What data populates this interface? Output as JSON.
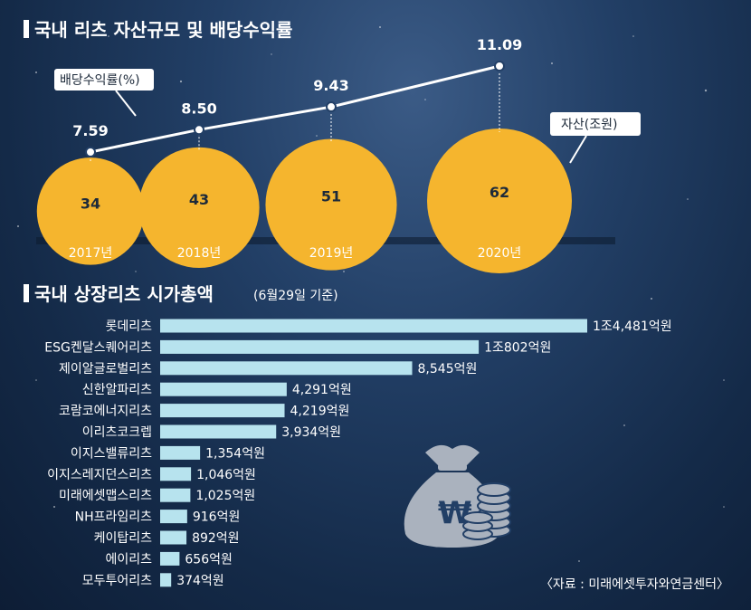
{
  "chart_data": [
    {
      "type": "line+bubble",
      "title": "국내 리츠 자산규모 및 배당수익률",
      "categories": [
        "2017년",
        "2018년",
        "2019년",
        "2020년"
      ],
      "series": [
        {
          "name": "배당수익률(%)",
          "values": [
            7.59,
            8.5,
            9.43,
            11.09
          ],
          "labels": [
            "7.59",
            "8.50",
            "9.43",
            "11.09"
          ]
        },
        {
          "name": "자산(조원)",
          "values": [
            34,
            43,
            51,
            62
          ],
          "labels": [
            "34",
            "43",
            "51",
            "62"
          ]
        }
      ]
    },
    {
      "type": "bar",
      "orientation": "horizontal",
      "title": "국내 상장리츠 시가총액",
      "subtitle": "(6월29일 기준)",
      "unit": "억원",
      "categories": [
        "롯데리츠",
        "ESG켄달스퀘어리츠",
        "제이알글로벌리츠",
        "신한알파리츠",
        "코람코에너지리츠",
        "이리츠코크렙",
        "이지스밸류리츠",
        "이지스레지던스리츠",
        "미래에셋맵스리츠",
        "NH프라임리츠",
        "케이탑리츠",
        "에이리츠",
        "모두투어리츠"
      ],
      "values": [
        14481,
        10802,
        8545,
        4291,
        4219,
        3934,
        1354,
        1046,
        1025,
        916,
        892,
        656,
        374
      ],
      "value_labels": [
        "1조4,481억원",
        "1조802억원",
        "8,545억원",
        "4,291억원",
        "4,219억원",
        "3,934억원",
        "1,354억원",
        "1,046억원",
        "1,025억원",
        "916억원",
        "892억원",
        "656억원",
        "374억원"
      ]
    }
  ],
  "source": "〈자료 : 미래에셋투자와연금센터〉",
  "icon": "money-bag-won-coins-icon",
  "colors": {
    "bubble": "#f5b52e",
    "bar": "#b7e3ee",
    "line": "#ffffff",
    "text": "#ffffff"
  }
}
